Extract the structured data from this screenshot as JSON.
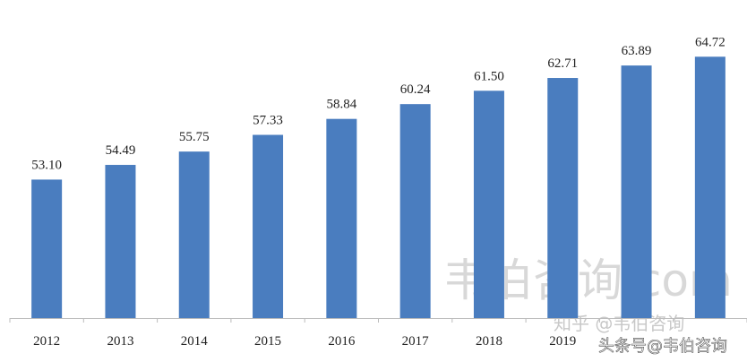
{
  "chart_data": {
    "type": "bar",
    "categories": [
      "2012",
      "2013",
      "2014",
      "2015",
      "2016",
      "2017",
      "2018",
      "2019",
      null,
      null
    ],
    "values": [
      53.1,
      54.49,
      55.75,
      57.33,
      58.84,
      60.24,
      61.5,
      62.71,
      63.89,
      64.72
    ],
    "value_labels": [
      "53.10",
      "54.49",
      "55.75",
      "57.33",
      "58.84",
      "60.24",
      "61.50",
      "62.71",
      "63.89",
      "64.72"
    ],
    "color": "#4a7dbf",
    "ylim": [
      40,
      70
    ],
    "watermarks": [
      "韦伯咨询.com",
      "知乎 @韦伯咨询",
      "头条号@韦伯咨询"
    ]
  }
}
